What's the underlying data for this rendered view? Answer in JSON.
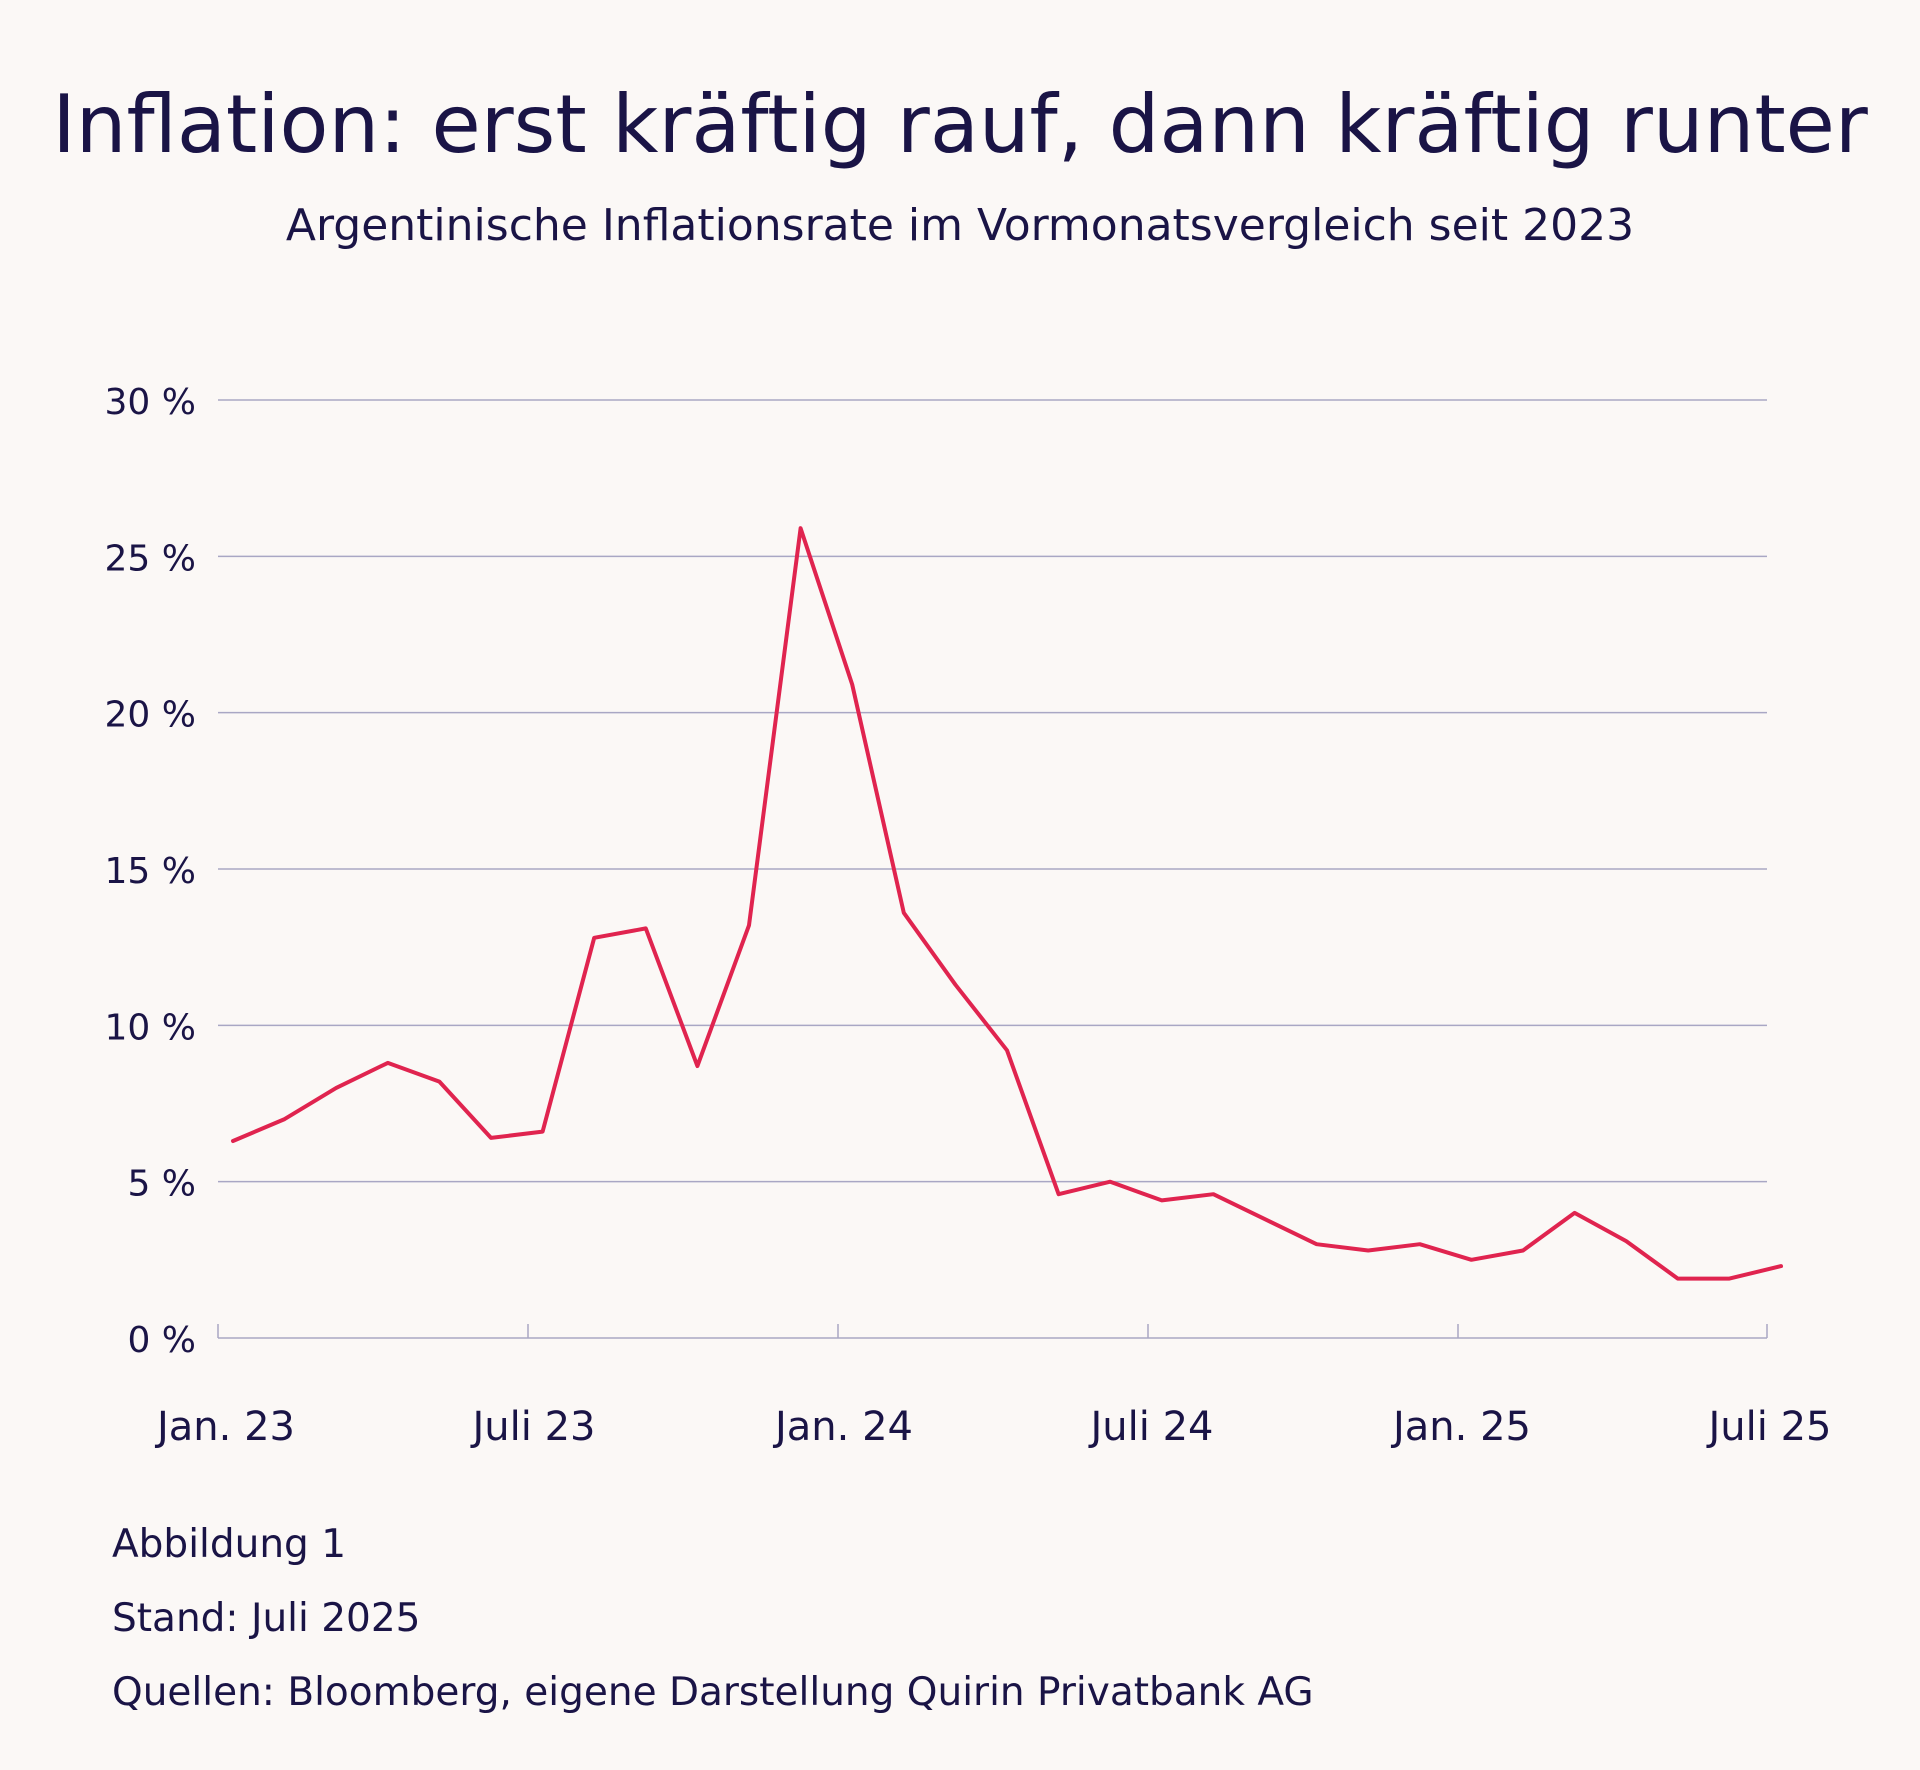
{
  "title": "Inflation: erst kräftig rauf, dann kräftig runter",
  "subtitle": "Argentinische Inflationsrate im Vormonatsvergleich seit 2023",
  "footnotes": {
    "figure": "Abbildung 1",
    "date": "Stand: Juli 2025",
    "source": "Quellen: Bloomberg, eigene Darstellung Quirin Privatbank AG"
  },
  "colors": {
    "line": "#e0244f",
    "grid": "#a9a7c4",
    "text": "#1a1446",
    "background": "#fbf8f6"
  },
  "chart_data": {
    "type": "line",
    "title": "Argentinische Inflationsrate im Vormonatsvergleich seit 2023",
    "ylim": [
      0,
      30
    ],
    "y_ticks": [
      0,
      5,
      10,
      15,
      20,
      25,
      30
    ],
    "y_tick_labels": [
      "0 %",
      "5 %",
      "10 %",
      "15 %",
      "20 %",
      "25 %",
      "30 %"
    ],
    "x_tick_labels": [
      "Jan. 23",
      "Juli 23",
      "Jan. 24",
      "Juli 24",
      "Jan. 25",
      "Juli 25"
    ],
    "grid": true,
    "x": [
      "2023-01",
      "2023-02",
      "2023-03",
      "2023-04",
      "2023-05",
      "2023-06",
      "2023-07",
      "2023-08",
      "2023-09",
      "2023-10",
      "2023-11",
      "2023-12",
      "2024-01",
      "2024-02",
      "2024-03",
      "2024-04",
      "2024-05",
      "2024-06",
      "2024-07",
      "2024-08",
      "2024-09",
      "2024-10",
      "2024-11",
      "2024-12",
      "2025-01",
      "2025-02",
      "2025-03",
      "2025-04",
      "2025-05",
      "2025-06",
      "2025-07"
    ],
    "series": [
      {
        "values": [
          6.3,
          7.0,
          8.0,
          8.8,
          8.2,
          6.4,
          6.6,
          12.8,
          13.1,
          8.7,
          13.2,
          25.9,
          20.9,
          13.6,
          11.3,
          9.2,
          4.6,
          5.0,
          4.4,
          4.6,
          3.8,
          3.0,
          2.8,
          3.0,
          2.5,
          2.8,
          4.0,
          3.1,
          1.9,
          1.9,
          2.3
        ]
      }
    ]
  }
}
